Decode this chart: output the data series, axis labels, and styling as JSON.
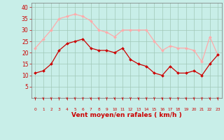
{
  "x": [
    0,
    1,
    2,
    3,
    4,
    5,
    6,
    7,
    8,
    9,
    10,
    11,
    12,
    13,
    14,
    15,
    16,
    17,
    18,
    19,
    20,
    21,
    22,
    23
  ],
  "wind_avg": [
    11,
    12,
    15,
    21,
    24,
    25,
    26,
    22,
    21,
    21,
    20,
    22,
    17,
    15,
    14,
    11,
    10,
    14,
    11,
    11,
    12,
    10,
    15,
    19
  ],
  "wind_gust": [
    22,
    26,
    30,
    35,
    36,
    37,
    36,
    34,
    30,
    29,
    27,
    30,
    30,
    30,
    30,
    25,
    21,
    23,
    22,
    22,
    21,
    16,
    27,
    19
  ],
  "avg_color": "#cc0000",
  "gust_color": "#ffaaaa",
  "bg_color": "#c8eee8",
  "grid_color": "#a0c8b8",
  "xlabel": "Vent moyen/en rafales ( km/h )",
  "xlabel_color": "#cc0000",
  "tick_color": "#cc0000",
  "ylim": [
    0,
    42
  ],
  "yticks": [
    5,
    10,
    15,
    20,
    25,
    30,
    35,
    40
  ],
  "xlim": [
    -0.5,
    23.5
  ],
  "marker_color": "#cc0000",
  "arrow_color": "#cc0000"
}
